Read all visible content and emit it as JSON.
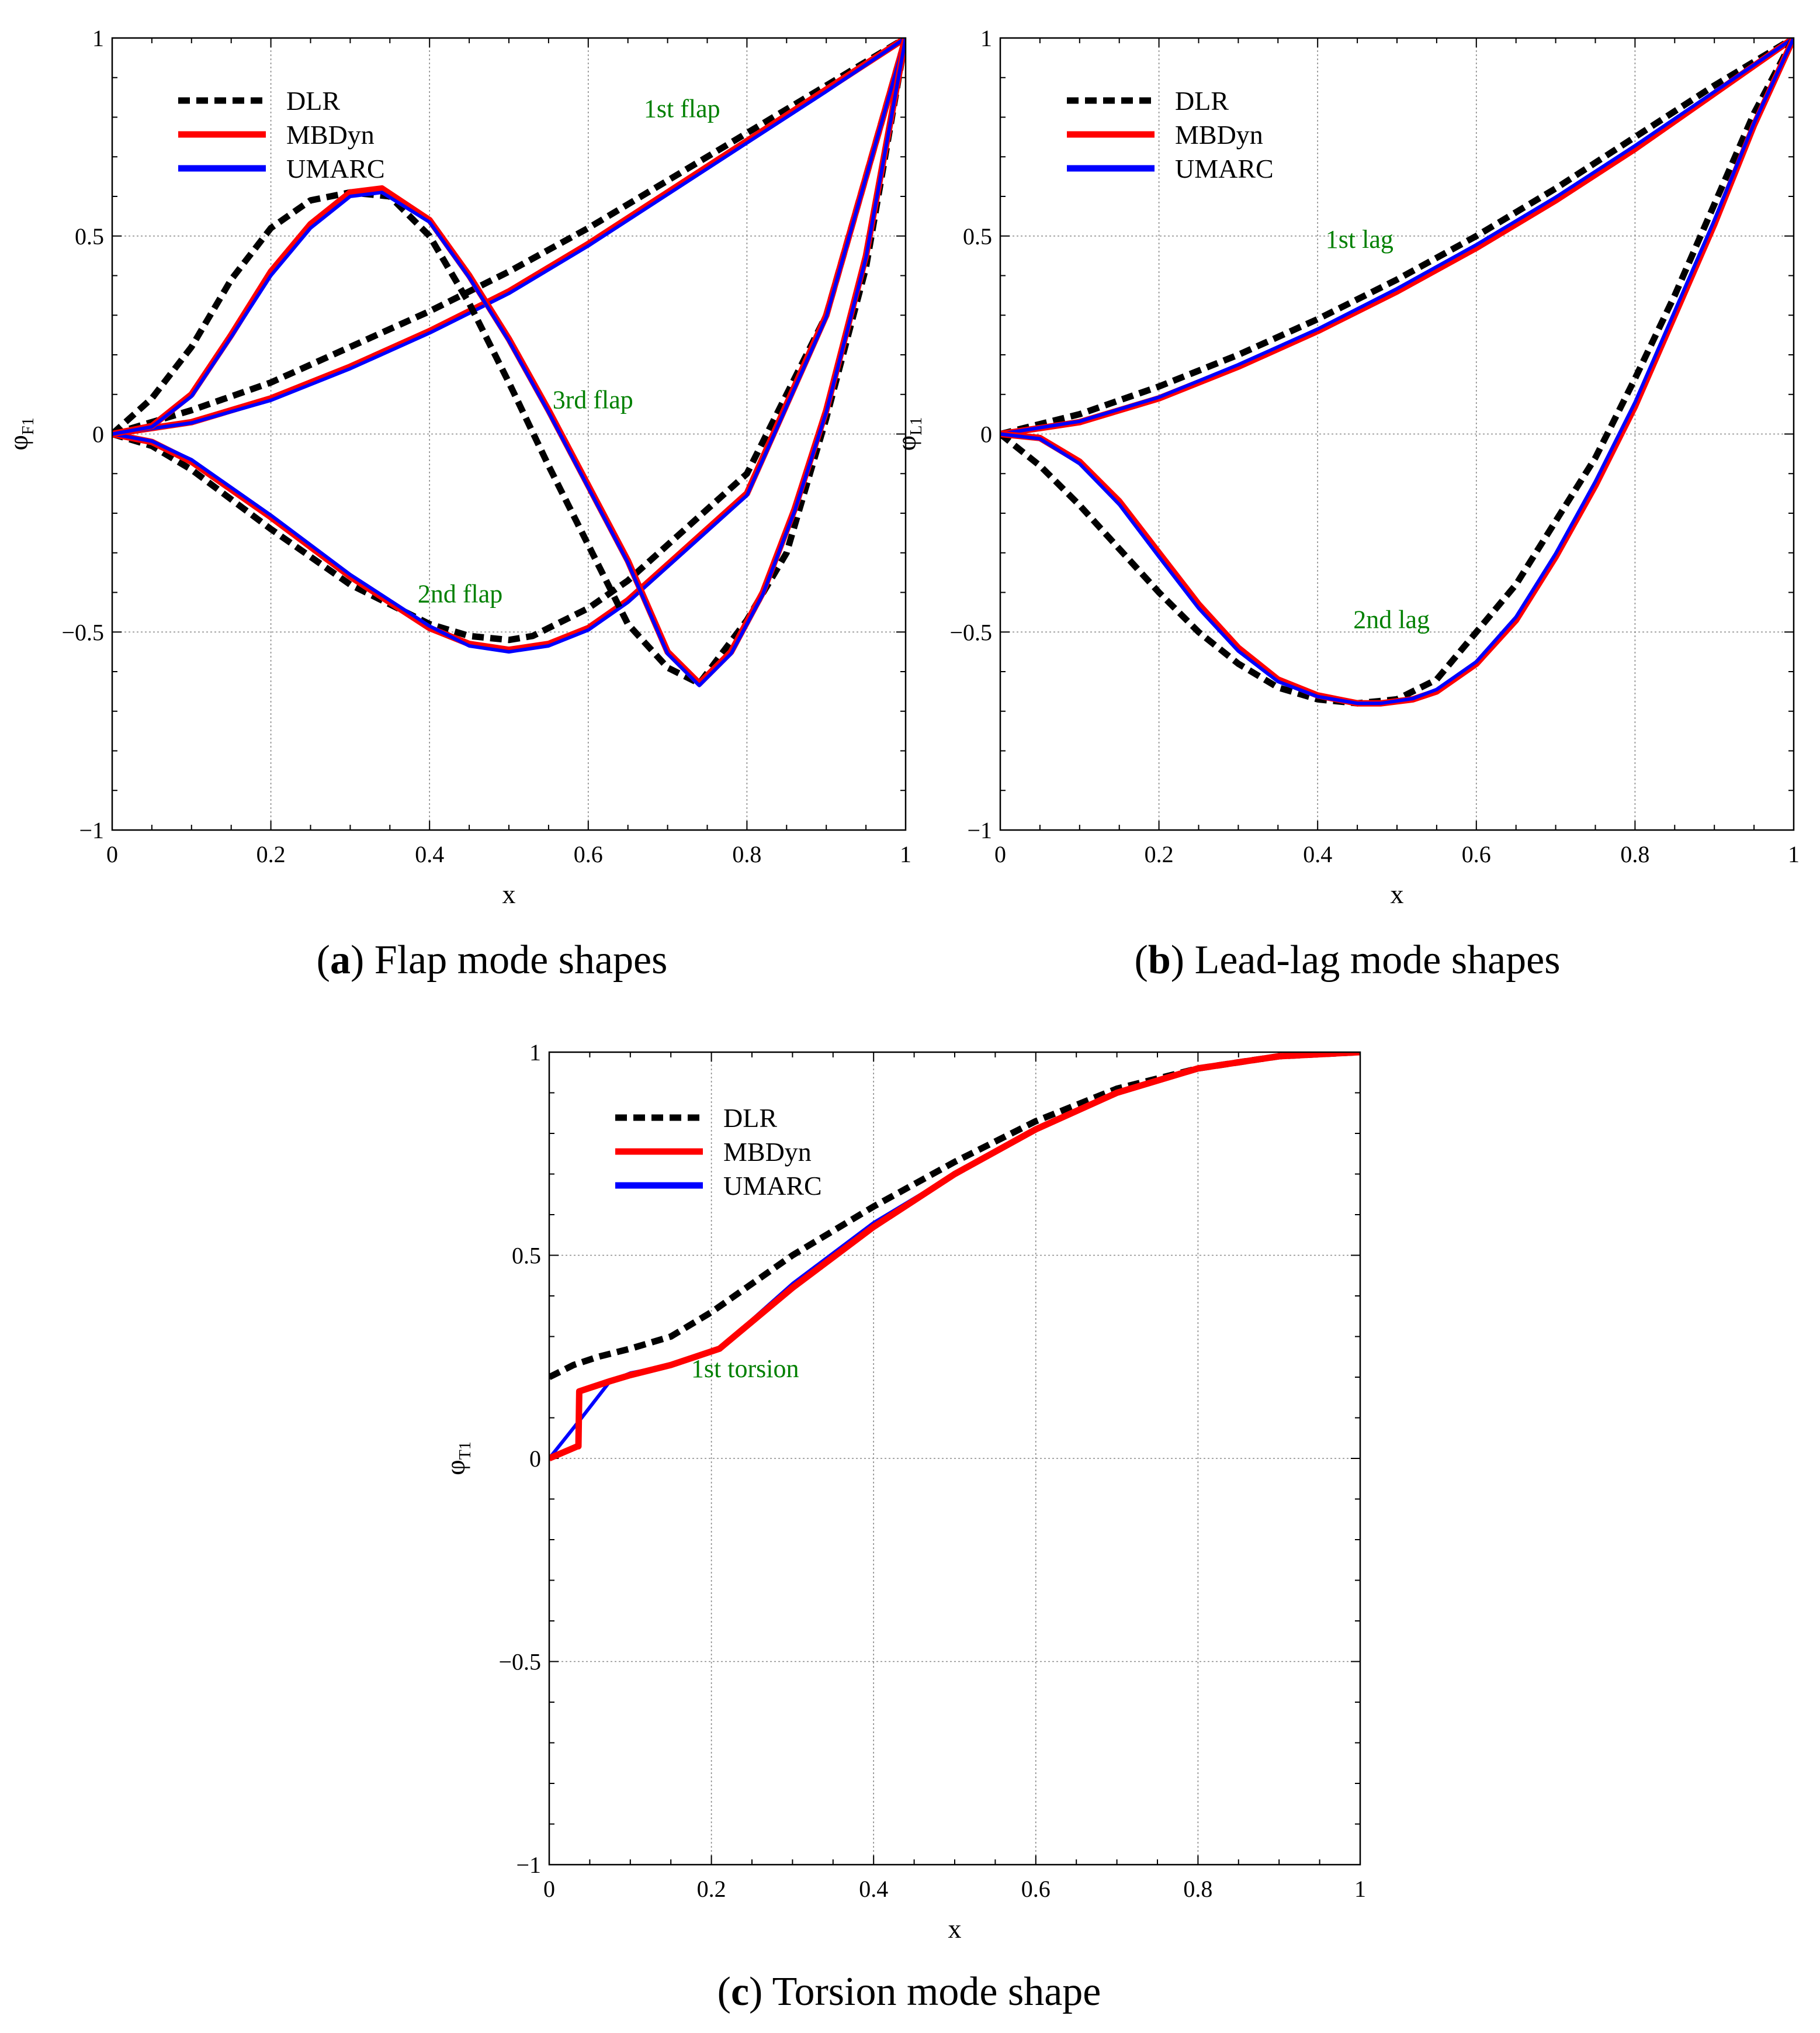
{
  "chart_data": [
    {
      "type": "line",
      "id": "a",
      "caption_letter": "a",
      "caption_text": " Flap mode shapes",
      "xlabel": "x",
      "ylabel_main": "φ",
      "ylabel_sub": "F1",
      "xlim": [
        0,
        1
      ],
      "ylim": [
        -1,
        1
      ],
      "xticks": [
        0,
        0.2,
        0.4,
        0.6,
        0.8,
        1
      ],
      "xtick_labels": [
        "0",
        "0.2",
        "0.4",
        "0.6",
        "0.8",
        "1"
      ],
      "yticks": [
        -1,
        -0.5,
        0,
        0.5,
        1
      ],
      "ytick_labels": [
        "−1",
        "−0.5",
        "0",
        "0.5",
        "1"
      ],
      "grid": true,
      "legend_position": "top-left",
      "legend": [
        {
          "name": "DLR",
          "color": "#000000",
          "style": "dashed"
        },
        {
          "name": "MBDyn",
          "color": "#ff0000",
          "style": "solid"
        },
        {
          "name": "UMARC",
          "color": "#0000ff",
          "style": "solid"
        }
      ],
      "annotations": [
        {
          "text": "1st flap",
          "x": 0.67,
          "y": 0.8,
          "color": "#008000"
        },
        {
          "text": "3rd flap",
          "x": 0.555,
          "y": 0.065,
          "color": "#008000"
        },
        {
          "text": "2nd flap",
          "x": 0.385,
          "y": -0.425,
          "color": "#008000"
        }
      ],
      "series": [
        {
          "name": "DLR",
          "mode": "1st flap",
          "color": "#000000",
          "style": "dashed",
          "x": [
            0,
            0.1,
            0.2,
            0.3,
            0.4,
            0.5,
            0.6,
            0.7,
            0.8,
            0.9,
            1
          ],
          "y": [
            0,
            0.06,
            0.13,
            0.22,
            0.31,
            0.41,
            0.52,
            0.64,
            0.76,
            0.88,
            1
          ]
        },
        {
          "name": "MBDyn",
          "mode": "1st flap",
          "color": "#ff0000",
          "style": "solid",
          "x": [
            0,
            0.1,
            0.2,
            0.3,
            0.4,
            0.5,
            0.6,
            0.7,
            0.8,
            0.9,
            1
          ],
          "y": [
            0,
            0.03,
            0.09,
            0.17,
            0.26,
            0.36,
            0.48,
            0.61,
            0.74,
            0.87,
            1
          ]
        },
        {
          "name": "UMARC",
          "mode": "1st flap",
          "color": "#0000ff",
          "style": "solid",
          "x": [
            0,
            0.1,
            0.2,
            0.3,
            0.4,
            0.5,
            0.6,
            0.7,
            0.8,
            0.9,
            1
          ],
          "y": [
            0,
            0.028,
            0.085,
            0.165,
            0.255,
            0.355,
            0.475,
            0.605,
            0.735,
            0.865,
            1
          ]
        },
        {
          "name": "DLR",
          "mode": "2nd flap",
          "color": "#000000",
          "style": "dashed",
          "x": [
            0,
            0.05,
            0.1,
            0.2,
            0.3,
            0.4,
            0.45,
            0.5,
            0.53,
            0.6,
            0.65,
            0.7,
            0.8,
            0.9,
            1
          ],
          "y": [
            0,
            -0.03,
            -0.09,
            -0.24,
            -0.38,
            -0.48,
            -0.51,
            -0.52,
            -0.51,
            -0.44,
            -0.37,
            -0.28,
            -0.1,
            0.3,
            1
          ]
        },
        {
          "name": "MBDyn",
          "mode": "2nd flap",
          "color": "#ff0000",
          "style": "solid",
          "x": [
            0,
            0.05,
            0.1,
            0.2,
            0.3,
            0.4,
            0.45,
            0.5,
            0.55,
            0.6,
            0.65,
            0.7,
            0.8,
            0.9,
            1
          ],
          "y": [
            0,
            -0.02,
            -0.07,
            -0.21,
            -0.36,
            -0.49,
            -0.53,
            -0.545,
            -0.53,
            -0.49,
            -0.42,
            -0.33,
            -0.15,
            0.3,
            1
          ]
        },
        {
          "name": "UMARC",
          "mode": "2nd flap",
          "color": "#0000ff",
          "style": "solid",
          "x": [
            0,
            0.05,
            0.1,
            0.2,
            0.3,
            0.4,
            0.45,
            0.5,
            0.55,
            0.6,
            0.65,
            0.7,
            0.8,
            0.9,
            1
          ],
          "y": [
            0,
            -0.018,
            -0.065,
            -0.205,
            -0.355,
            -0.485,
            -0.535,
            -0.55,
            -0.535,
            -0.495,
            -0.425,
            -0.335,
            -0.155,
            0.295,
            1
          ]
        },
        {
          "name": "DLR",
          "mode": "3rd flap",
          "color": "#000000",
          "style": "dashed",
          "x": [
            0,
            0.05,
            0.1,
            0.15,
            0.2,
            0.25,
            0.3,
            0.35,
            0.4,
            0.45,
            0.5,
            0.55,
            0.6,
            0.65,
            0.7,
            0.74,
            0.8,
            0.85,
            0.9,
            0.95,
            1
          ],
          "y": [
            0,
            0.09,
            0.22,
            0.39,
            0.52,
            0.59,
            0.61,
            0.6,
            0.5,
            0.33,
            0.13,
            -0.08,
            -0.28,
            -0.48,
            -0.59,
            -0.63,
            -0.47,
            -0.3,
            0.04,
            0.42,
            1
          ]
        },
        {
          "name": "MBDyn",
          "mode": "3rd flap",
          "color": "#ff0000",
          "style": "solid",
          "x": [
            0,
            0.05,
            0.1,
            0.15,
            0.2,
            0.25,
            0.3,
            0.34,
            0.4,
            0.45,
            0.5,
            0.55,
            0.6,
            0.65,
            0.7,
            0.74,
            0.78,
            0.82,
            0.86,
            0.9,
            0.95,
            1
          ],
          "y": [
            0,
            0.02,
            0.1,
            0.25,
            0.41,
            0.53,
            0.61,
            0.62,
            0.54,
            0.4,
            0.24,
            0.06,
            -0.13,
            -0.32,
            -0.55,
            -0.63,
            -0.55,
            -0.4,
            -0.19,
            0.06,
            0.45,
            1
          ]
        },
        {
          "name": "UMARC",
          "mode": "3rd flap",
          "color": "#0000ff",
          "style": "solid",
          "x": [
            0,
            0.05,
            0.1,
            0.15,
            0.2,
            0.25,
            0.3,
            0.34,
            0.4,
            0.45,
            0.5,
            0.55,
            0.6,
            0.65,
            0.7,
            0.74,
            0.78,
            0.82,
            0.86,
            0.9,
            0.95,
            1
          ],
          "y": [
            0,
            0.018,
            0.095,
            0.245,
            0.4,
            0.52,
            0.6,
            0.61,
            0.535,
            0.395,
            0.235,
            0.055,
            -0.135,
            -0.325,
            -0.555,
            -0.635,
            -0.555,
            -0.405,
            -0.195,
            0.055,
            0.445,
            1
          ]
        }
      ]
    },
    {
      "type": "line",
      "id": "b",
      "caption_letter": "b",
      "caption_text": " Lead-lag mode shapes",
      "xlabel": "x",
      "ylabel_main": "φ",
      "ylabel_sub": "L1",
      "xlim": [
        0,
        1
      ],
      "ylim": [
        -1,
        1
      ],
      "xticks": [
        0,
        0.2,
        0.4,
        0.6,
        0.8,
        1
      ],
      "xtick_labels": [
        "0",
        "0.2",
        "0.4",
        "0.6",
        "0.8",
        "1"
      ],
      "yticks": [
        -1,
        -0.5,
        0,
        0.5,
        1
      ],
      "ytick_labels": [
        "−1",
        "−0.5",
        "0",
        "0.5",
        "1"
      ],
      "grid": true,
      "legend_position": "top-left",
      "legend": [
        {
          "name": "DLR",
          "color": "#000000",
          "style": "dashed"
        },
        {
          "name": "MBDyn",
          "color": "#ff0000",
          "style": "solid"
        },
        {
          "name": "UMARC",
          "color": "#0000ff",
          "style": "solid"
        }
      ],
      "annotations": [
        {
          "text": "1st lag",
          "x": 0.41,
          "y": 0.47,
          "color": "#008000"
        },
        {
          "text": "2nd lag",
          "x": 0.445,
          "y": -0.49,
          "color": "#008000"
        }
      ],
      "series": [
        {
          "name": "DLR",
          "mode": "1st lag",
          "color": "#000000",
          "style": "dashed",
          "x": [
            0,
            0.1,
            0.2,
            0.3,
            0.4,
            0.5,
            0.6,
            0.7,
            0.8,
            0.9,
            1
          ],
          "y": [
            0,
            0.05,
            0.12,
            0.2,
            0.29,
            0.39,
            0.5,
            0.62,
            0.75,
            0.88,
            1
          ]
        },
        {
          "name": "MBDyn",
          "mode": "1st lag",
          "color": "#ff0000",
          "style": "solid",
          "x": [
            0,
            0.1,
            0.2,
            0.3,
            0.4,
            0.5,
            0.6,
            0.7,
            0.8,
            0.9,
            1
          ],
          "y": [
            0,
            0.03,
            0.09,
            0.17,
            0.26,
            0.36,
            0.47,
            0.59,
            0.72,
            0.86,
            1
          ]
        },
        {
          "name": "UMARC",
          "mode": "1st lag",
          "color": "#0000ff",
          "style": "solid",
          "x": [
            0,
            0.1,
            0.2,
            0.3,
            0.4,
            0.5,
            0.6,
            0.7,
            0.8,
            0.9,
            1
          ],
          "y": [
            0,
            0.032,
            0.093,
            0.175,
            0.265,
            0.367,
            0.478,
            0.598,
            0.728,
            0.864,
            1
          ]
        },
        {
          "name": "DLR",
          "mode": "2nd lag",
          "color": "#000000",
          "style": "dashed",
          "x": [
            0,
            0.05,
            0.1,
            0.15,
            0.2,
            0.25,
            0.3,
            0.35,
            0.4,
            0.45,
            0.5,
            0.55,
            0.6,
            0.65,
            0.7,
            0.75,
            0.8,
            0.85,
            0.9,
            0.95,
            1
          ],
          "y": [
            0,
            -0.08,
            -0.18,
            -0.29,
            -0.4,
            -0.5,
            -0.58,
            -0.64,
            -0.67,
            -0.68,
            -0.67,
            -0.62,
            -0.5,
            -0.38,
            -0.22,
            -0.06,
            0.14,
            0.35,
            0.58,
            0.81,
            1
          ]
        },
        {
          "name": "MBDyn",
          "mode": "2nd lag",
          "color": "#ff0000",
          "style": "solid",
          "x": [
            0,
            0.05,
            0.1,
            0.15,
            0.2,
            0.25,
            0.3,
            0.35,
            0.4,
            0.45,
            0.48,
            0.52,
            0.55,
            0.6,
            0.65,
            0.7,
            0.75,
            0.8,
            0.85,
            0.9,
            0.95,
            1
          ],
          "y": [
            0,
            -0.01,
            -0.07,
            -0.17,
            -0.3,
            -0.43,
            -0.54,
            -0.62,
            -0.66,
            -0.68,
            -0.68,
            -0.67,
            -0.65,
            -0.58,
            -0.47,
            -0.31,
            -0.13,
            0.07,
            0.3,
            0.53,
            0.78,
            1
          ]
        },
        {
          "name": "UMARC",
          "mode": "2nd lag",
          "color": "#0000ff",
          "style": "solid",
          "x": [
            0,
            0.05,
            0.1,
            0.15,
            0.2,
            0.25,
            0.3,
            0.35,
            0.4,
            0.45,
            0.48,
            0.52,
            0.55,
            0.6,
            0.65,
            0.7,
            0.75,
            0.8,
            0.85,
            0.9,
            0.95,
            1
          ],
          "y": [
            0,
            -0.012,
            -0.075,
            -0.178,
            -0.31,
            -0.44,
            -0.548,
            -0.625,
            -0.663,
            -0.68,
            -0.68,
            -0.668,
            -0.645,
            -0.575,
            -0.462,
            -0.302,
            -0.12,
            0.08,
            0.31,
            0.54,
            0.785,
            1
          ]
        }
      ]
    },
    {
      "type": "line",
      "id": "c",
      "caption_letter": "c",
      "caption_text": " Torsion mode shape",
      "xlabel": "x",
      "ylabel_main": "φ",
      "ylabel_sub": "T1",
      "xlim": [
        0,
        1
      ],
      "ylim": [
        -1,
        1
      ],
      "xticks": [
        0,
        0.2,
        0.4,
        0.6,
        0.8,
        1
      ],
      "xtick_labels": [
        "0",
        "0.2",
        "0.4",
        "0.6",
        "0.8",
        "1"
      ],
      "yticks": [
        -1,
        -0.5,
        0,
        0.5,
        1
      ],
      "ytick_labels": [
        "−1",
        "−0.5",
        "0",
        "0.5",
        "1"
      ],
      "grid": true,
      "legend_position": "top-left",
      "legend": [
        {
          "name": "DLR",
          "color": "#000000",
          "style": "dashed"
        },
        {
          "name": "MBDyn",
          "color": "#ff0000",
          "style": "solid"
        },
        {
          "name": "UMARC",
          "color": "#0000ff",
          "style": "solid"
        }
      ],
      "annotations": [
        {
          "text": "1st torsion",
          "x": 0.175,
          "y": 0.2,
          "color": "#008000"
        }
      ],
      "series": [
        {
          "name": "DLR",
          "mode": "1st torsion",
          "color": "#000000",
          "style": "dashed",
          "x": [
            0,
            0.03,
            0.06,
            0.1,
            0.15,
            0.2,
            0.3,
            0.4,
            0.5,
            0.6,
            0.7,
            0.8,
            0.9,
            1
          ],
          "y": [
            0.2,
            0.23,
            0.25,
            0.27,
            0.3,
            0.36,
            0.5,
            0.62,
            0.73,
            0.83,
            0.91,
            0.96,
            0.99,
            1
          ]
        },
        {
          "name": "UMARC",
          "mode": "1st torsion",
          "color": "#0000ff",
          "style": "solid",
          "x": [
            0,
            0.04,
            0.075,
            0.1,
            0.15,
            0.21,
            0.3,
            0.4,
            0.5,
            0.6,
            0.7,
            0.8,
            0.9,
            1
          ],
          "y": [
            0,
            0.1,
            0.19,
            0.21,
            0.23,
            0.27,
            0.43,
            0.58,
            0.7,
            0.81,
            0.9,
            0.96,
            0.99,
            1
          ]
        },
        {
          "name": "MBDyn",
          "mode": "1st torsion",
          "color": "#ff0000",
          "style": "solid",
          "x": [
            0,
            0.035,
            0.036,
            0.037,
            0.075,
            0.1,
            0.15,
            0.21,
            0.3,
            0.4,
            0.5,
            0.6,
            0.7,
            0.8,
            0.9,
            1
          ],
          "y": [
            0,
            0.03,
            0.03,
            0.165,
            0.19,
            0.205,
            0.23,
            0.27,
            0.42,
            0.57,
            0.7,
            0.81,
            0.9,
            0.96,
            0.99,
            1
          ]
        }
      ]
    }
  ]
}
